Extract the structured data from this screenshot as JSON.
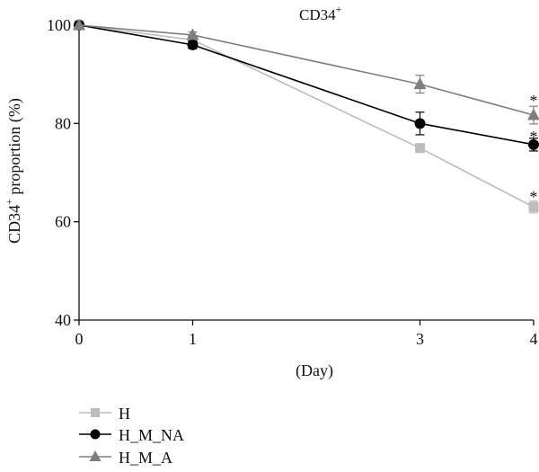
{
  "chart_data": {
    "type": "line",
    "title": "CD34",
    "title_sup": "+",
    "xlabel": "(Day)",
    "ylabel": "CD34",
    "ylabel_sup": "+",
    "ylabel_rest": " proportion (%)",
    "x": [
      0,
      1,
      3,
      4
    ],
    "x_tick_labels": [
      "0",
      "1",
      "3",
      "4"
    ],
    "ylim": [
      40,
      100
    ],
    "y_ticks": [
      40,
      60,
      80,
      100
    ],
    "grid": false,
    "legend_position": "bottom-left",
    "series": [
      {
        "name": "H",
        "color": "#bdbdbd",
        "marker": "square",
        "values": [
          100,
          97,
          75,
          63
        ],
        "errors": [
          0,
          0.5,
          0,
          1.2
        ]
      },
      {
        "name": "H_M_NA",
        "color": "#000000",
        "marker": "circle",
        "values": [
          100,
          96,
          80,
          75.7
        ],
        "errors": [
          0,
          0.8,
          2.3,
          1.3
        ]
      },
      {
        "name": "H_M_A",
        "color": "#7f7f7f",
        "marker": "triangle",
        "values": [
          100,
          98,
          88,
          81.7
        ],
        "errors": [
          0,
          0.6,
          1.8,
          1.8
        ]
      }
    ],
    "annotations": [
      "*",
      "*",
      "*"
    ]
  }
}
